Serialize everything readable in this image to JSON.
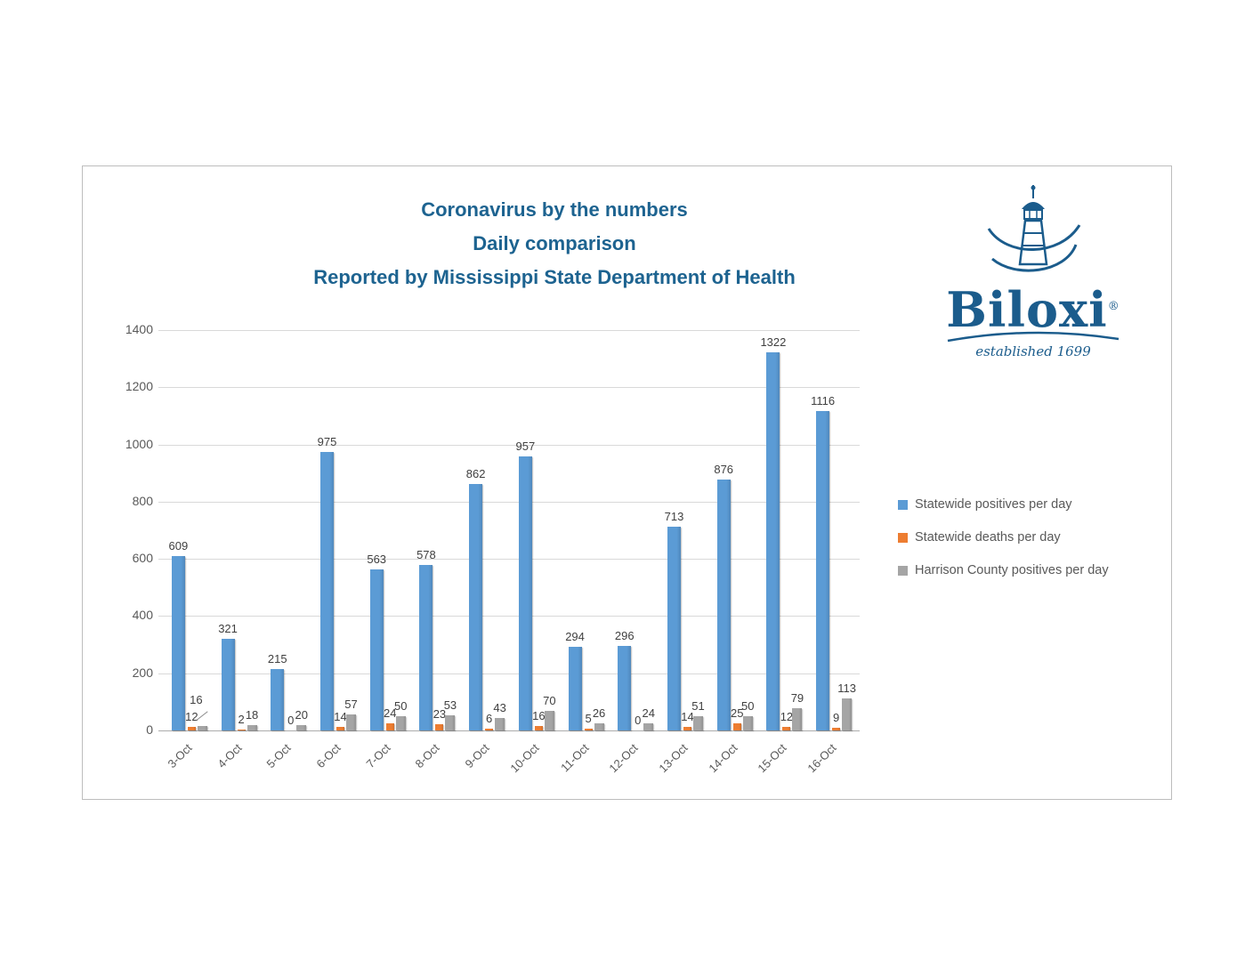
{
  "logo": {
    "name": "Biloxi",
    "registered": "®",
    "tagline": "established 1699",
    "color": "#1B5C8C"
  },
  "chart_data": {
    "type": "bar",
    "title_lines": [
      "Coronavirus by the numbers",
      "Daily comparison",
      "Reported by Mississippi State Department of Health"
    ],
    "title_color": "#1D6390",
    "categories": [
      "3-Oct",
      "4-Oct",
      "5-Oct",
      "6-Oct",
      "7-Oct",
      "8-Oct",
      "9-Oct",
      "10-Oct",
      "11-Oct",
      "12-Oct",
      "13-Oct",
      "14-Oct",
      "15-Oct",
      "16-Oct"
    ],
    "series": [
      {
        "name": "Statewide positives per day",
        "color": "#5B9BD5",
        "values": [
          609,
          321,
          215,
          975,
          563,
          578,
          862,
          957,
          294,
          296,
          713,
          876,
          1322,
          1116
        ]
      },
      {
        "name": "Statewide deaths per day",
        "color": "#ED7D31",
        "values": [
          12,
          2,
          0,
          14,
          24,
          23,
          6,
          16,
          5,
          0,
          14,
          25,
          12,
          9
        ]
      },
      {
        "name": "Harrison County positives per day",
        "color": "#A5A5A5",
        "values": [
          16,
          18,
          20,
          57,
          50,
          53,
          43,
          70,
          26,
          24,
          51,
          50,
          79,
          113
        ]
      }
    ],
    "ylim": [
      0,
      1400
    ],
    "y_ticks": [
      0,
      200,
      400,
      600,
      800,
      1000,
      1200,
      1400
    ],
    "grid": true,
    "legend_position": "right",
    "label_color": "#404040",
    "tick_color": "#595959"
  }
}
